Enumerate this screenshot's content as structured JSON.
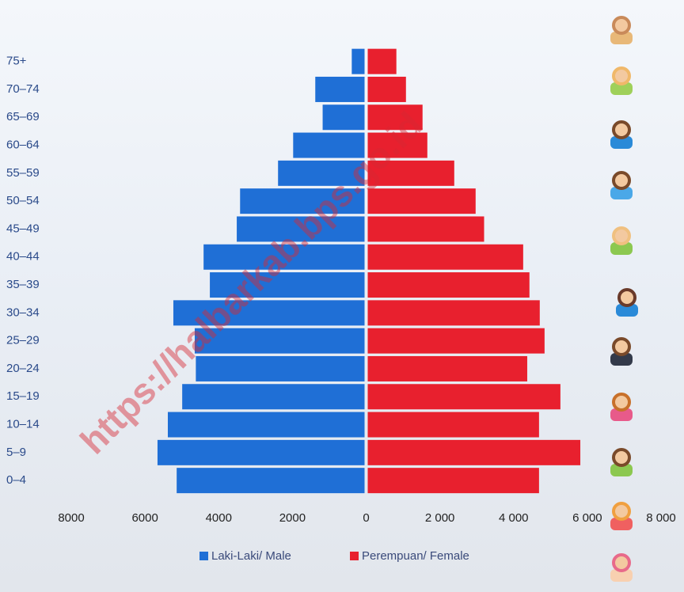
{
  "chart_data": {
    "type": "pyramid",
    "categories": [
      "75+",
      "70–74",
      "65–69",
      "60–64",
      "55–59",
      "50–54",
      "45–49",
      "40–44",
      "35–39",
      "30–34",
      "25–29",
      "20–24",
      "15–19",
      "10–14",
      "5–9",
      "0–4"
    ],
    "series": [
      {
        "name": "Laki-Laki/ Male",
        "color": "#1f6fd6",
        "values": [
          390,
          1380,
          1180,
          1980,
          2390,
          3420,
          3510,
          4410,
          4240,
          5230,
          4650,
          4620,
          4990,
          5380,
          5660,
          5140
        ]
      },
      {
        "name": "Perempuan/ Female",
        "color": "#e8202e",
        "values": [
          820,
          1080,
          1530,
          1660,
          2390,
          2970,
          3200,
          4260,
          4430,
          4710,
          4840,
          4370,
          5270,
          4690,
          5810,
          4690
        ]
      }
    ],
    "xlim": [
      -8000,
      8000
    ],
    "xticks": [
      {
        "value": -8000,
        "label": "8000"
      },
      {
        "value": -6000,
        "label": "6000"
      },
      {
        "value": -4000,
        "label": "4000"
      },
      {
        "value": -2000,
        "label": "2000"
      },
      0,
      {
        "value": 2000,
        "label": "2 000"
      },
      {
        "value": 4000,
        "label": "4 000"
      },
      {
        "value": 6000,
        "label": "6 000"
      },
      {
        "value": 8000,
        "label": "8 000"
      }
    ],
    "watermark": "https://halbarkab.bps.go.id"
  }
}
